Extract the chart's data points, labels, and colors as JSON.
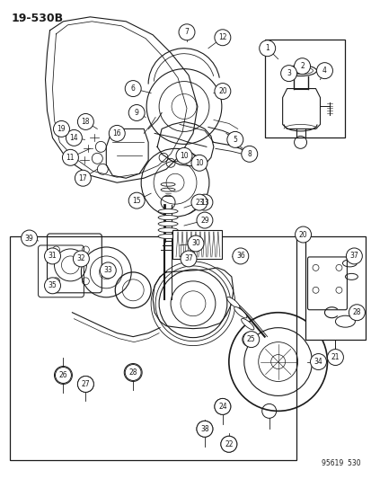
{
  "bg_color": "#ffffff",
  "line_color": "#1a1a1a",
  "text_color": "#1a1a1a",
  "diagram_label": "19-530B",
  "footer_text": "95619  530",
  "figsize": [
    4.14,
    5.33
  ],
  "dpi": 100
}
